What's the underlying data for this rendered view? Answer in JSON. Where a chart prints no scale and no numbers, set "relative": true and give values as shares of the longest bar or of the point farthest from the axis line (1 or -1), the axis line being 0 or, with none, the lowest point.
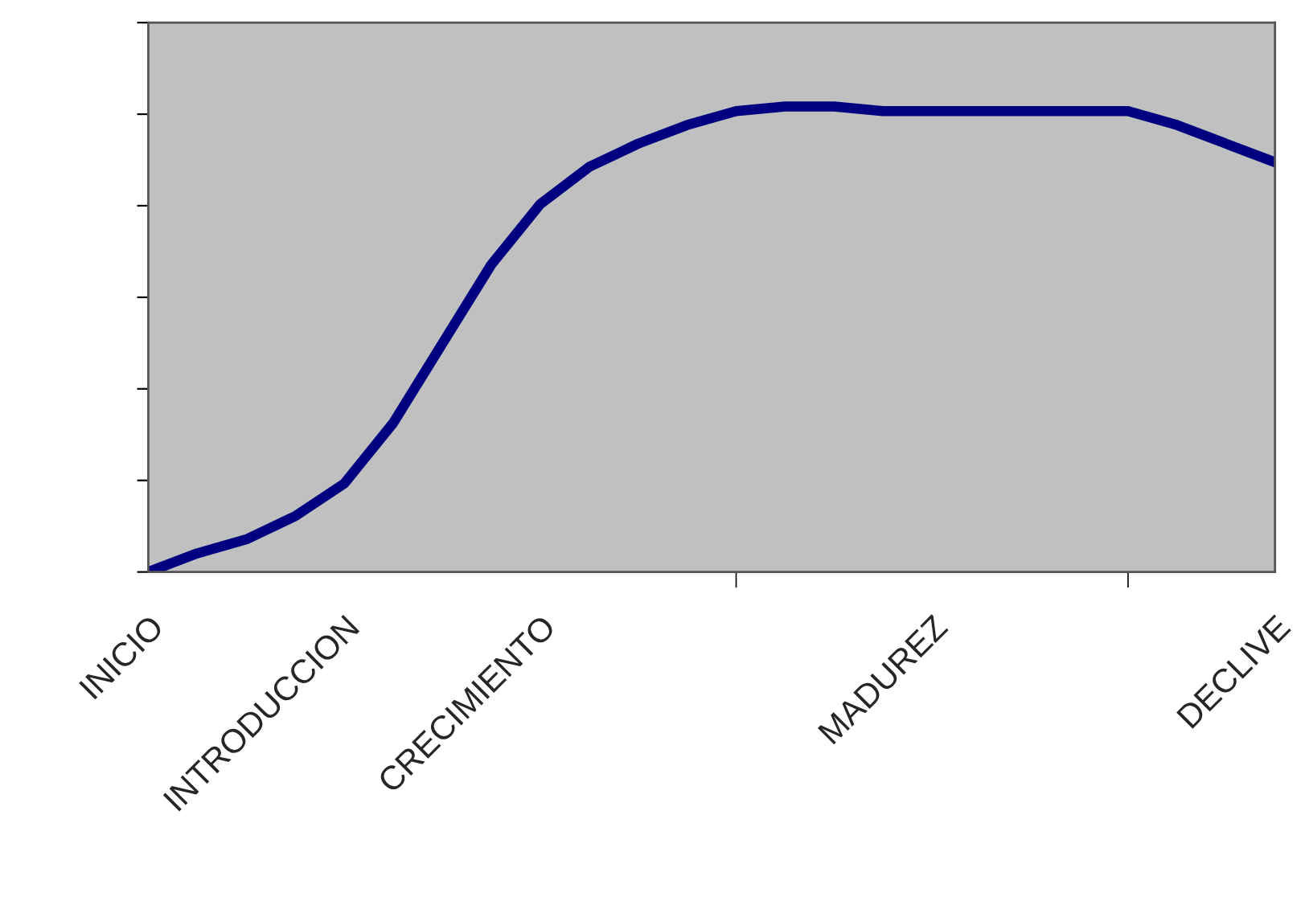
{
  "chart_data": {
    "type": "line",
    "relative": true,
    "categories": [
      "INICIO",
      null,
      null,
      null,
      "INTRODUCCION",
      null,
      null,
      null,
      "CRECIMIENTO",
      null,
      null,
      null,
      null,
      null,
      null,
      null,
      "MADUREZ",
      null,
      null,
      null,
      null,
      null,
      null,
      "DECLIVE"
    ],
    "series": [
      {
        "color": "#000080",
        "values": [
          0,
          0.04,
          0.07,
          0.12,
          0.19,
          0.32,
          0.49,
          0.66,
          0.79,
          0.87,
          0.92,
          0.96,
          0.99,
          1,
          1,
          0.99,
          0.99,
          0.99,
          0.99,
          0.99,
          0.99,
          0.96,
          0.92,
          0.88
        ]
      }
    ],
    "grid": false,
    "legend": false,
    "marker": "none",
    "line_style": "solid"
  }
}
